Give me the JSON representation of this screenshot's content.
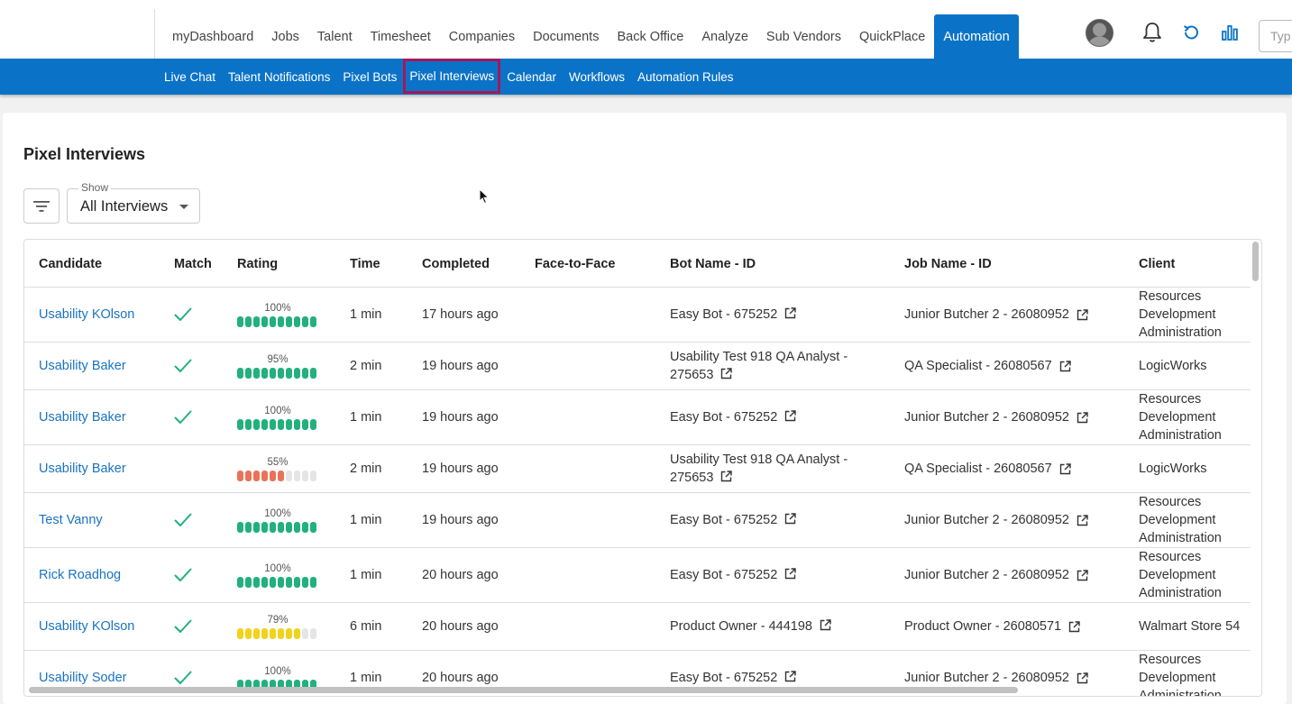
{
  "topnav": {
    "items": [
      {
        "label": "myDashboard"
      },
      {
        "label": "Jobs"
      },
      {
        "label": "Talent"
      },
      {
        "label": "Timesheet"
      },
      {
        "label": "Companies"
      },
      {
        "label": "Documents"
      },
      {
        "label": "Back Office"
      },
      {
        "label": "Analyze"
      },
      {
        "label": "Sub Vendors"
      },
      {
        "label": "QuickPlace"
      },
      {
        "label": "Automation",
        "active": true
      }
    ],
    "search_placeholder": "Typ",
    "icons": [
      "avatar",
      "bell-icon",
      "refresh-icon",
      "bar-chart-icon"
    ]
  },
  "subnav": {
    "items": [
      {
        "label": "Live Chat"
      },
      {
        "label": "Talent Notifications"
      },
      {
        "label": "Pixel Bots"
      },
      {
        "label": "Pixel Interviews",
        "active": true
      },
      {
        "label": "Calendar"
      },
      {
        "label": "Workflows"
      },
      {
        "label": "Automation Rules"
      }
    ]
  },
  "page": {
    "title": "Pixel Interviews",
    "show_label": "Show",
    "show_value": "All Interviews"
  },
  "table": {
    "columns": [
      "Candidate",
      "Match",
      "Rating",
      "Time",
      "Completed",
      "Face-to-Face",
      "Bot Name - ID",
      "Job Name - ID",
      "Client"
    ],
    "rows": [
      {
        "candidate": "Usability KOlson",
        "match": true,
        "rating": 100,
        "rating_label": "100%",
        "rating_color": "#22b07d",
        "time": "1 min",
        "completed": "17 hours ago",
        "face": "",
        "bot": "Easy Bot - 675252",
        "job": "Junior Butcher 2 - 26080952",
        "client": "Resources Development Administration"
      },
      {
        "candidate": "Usability Baker",
        "match": true,
        "rating": 95,
        "rating_label": "95%",
        "rating_color": "#22b07d",
        "time": "2 min",
        "completed": "19 hours ago",
        "face": "",
        "bot": "Usability Test 918 QA Analyst - 275653",
        "job": "QA Specialist - 26080567",
        "client": "LogicWorks"
      },
      {
        "candidate": "Usability Baker",
        "match": true,
        "rating": 100,
        "rating_label": "100%",
        "rating_color": "#22b07d",
        "time": "1 min",
        "completed": "19 hours ago",
        "face": "",
        "bot": "Easy Bot - 675252",
        "job": "Junior Butcher 2 - 26080952",
        "client": "Resources Development Administration"
      },
      {
        "candidate": "Usability Baker",
        "match": false,
        "rating": 55,
        "rating_label": "55%",
        "rating_color": "#e8735a",
        "time": "2 min",
        "completed": "19 hours ago",
        "face": "",
        "bot": "Usability Test 918 QA Analyst - 275653",
        "job": "QA Specialist - 26080567",
        "client": "LogicWorks"
      },
      {
        "candidate": "Test Vanny",
        "match": true,
        "rating": 100,
        "rating_label": "100%",
        "rating_color": "#22b07d",
        "time": "1 min",
        "completed": "19 hours ago",
        "face": "",
        "bot": "Easy Bot - 675252",
        "job": "Junior Butcher 2 - 26080952",
        "client": "Resources Development Administration"
      },
      {
        "candidate": "Rick Roadhog",
        "match": true,
        "rating": 100,
        "rating_label": "100%",
        "rating_color": "#22b07d",
        "time": "1 min",
        "completed": "20 hours ago",
        "face": "",
        "bot": "Easy Bot - 675252",
        "job": "Junior Butcher 2 - 26080952",
        "client": "Resources Development Administration"
      },
      {
        "candidate": "Usability KOlson",
        "match": true,
        "rating": 79,
        "rating_label": "79%",
        "rating_color": "#f2d21b",
        "time": "6 min",
        "completed": "20 hours ago",
        "face": "",
        "bot": "Product Owner - 444198",
        "job": "Product Owner - 26080571",
        "client": "Walmart Store 54"
      },
      {
        "candidate": "Usability Soder",
        "match": true,
        "rating": 100,
        "rating_label": "100%",
        "rating_color": "#22b07d",
        "time": "1 min",
        "completed": "20 hours ago",
        "face": "",
        "bot": "Easy Bot - 675252",
        "job": "Junior Butcher 2 - 26080952",
        "client": "Resources Development Administration"
      }
    ]
  },
  "colors": {
    "primary": "#0b73c7",
    "active_outline": "#a3195b",
    "link": "#1a73c0",
    "match_check": "#22b07d"
  }
}
